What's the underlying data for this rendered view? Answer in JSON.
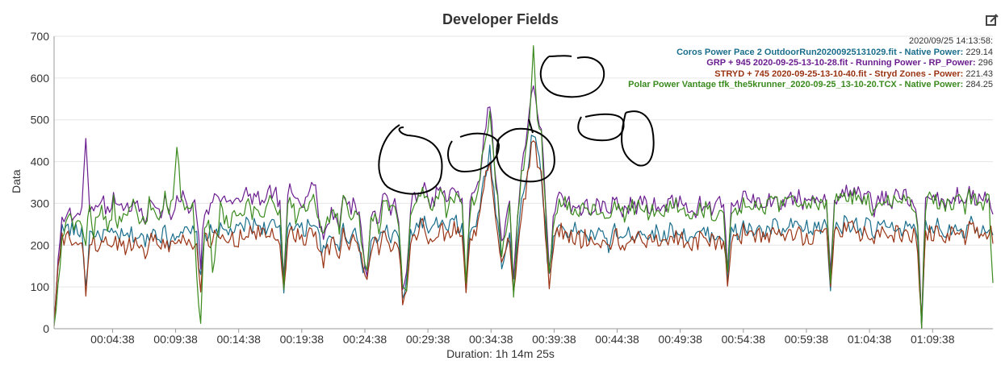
{
  "chart_data": {
    "type": "line",
    "title": "Developer Fields",
    "xlabel": "Duration: 1h 14m 25s",
    "ylabel": "Data",
    "ylim": [
      0,
      700
    ],
    "yticks": [
      0,
      100,
      200,
      300,
      400,
      500,
      600,
      700
    ],
    "duration_seconds": 4465,
    "xtick_seconds": [
      278,
      578,
      878,
      1178,
      1478,
      1778,
      2078,
      2378,
      2678,
      2978,
      3278,
      3578,
      3878,
      4178
    ],
    "xtick_labels": [
      "00:04:38",
      "00:09:38",
      "00:14:38",
      "00:19:38",
      "00:24:38",
      "00:29:38",
      "00:34:38",
      "00:39:38",
      "00:44:38",
      "00:49:38",
      "00:54:38",
      "00:59:38",
      "01:04:38",
      "01:09:38"
    ],
    "hover_timestamp": "2020/09/25 14:13:58:",
    "series": [
      {
        "name": "Coros Power Pace 2 OutdoorRun20200925131029.fit - Native Power",
        "value": "229.14",
        "color": "#1a6e8c",
        "base": [
          5,
          160,
          235,
          240,
          240,
          235,
          230,
          235,
          100,
          225,
          235,
          215,
          225,
          230,
          220,
          225,
          225,
          220,
          215,
          225,
          225,
          220,
          220,
          200,
          230,
          235,
          230,
          225,
          230,
          210,
          225,
          230,
          240,
          230,
          225,
          230,
          220,
          110,
          230,
          225,
          235,
          240,
          235,
          230,
          230,
          240,
          230,
          240,
          245,
          255,
          245,
          250,
          250,
          240,
          245,
          250,
          240,
          230,
          90,
          250,
          255,
          245,
          240,
          230,
          250,
          260,
          250,
          210,
          180,
          200,
          220,
          215,
          200,
          240,
          225,
          215,
          240,
          210,
          150,
          120,
          210,
          220,
          200,
          240,
          235,
          215,
          230,
          210,
          80,
          100,
          230,
          240,
          250,
          260,
          245,
          230,
          240,
          255,
          250,
          230,
          245,
          260,
          245,
          240,
          90,
          230,
          250,
          260,
          320,
          380,
          420,
          330,
          250,
          160,
          190,
          240,
          90,
          210,
          300,
          350,
          420,
          480,
          420,
          380,
          240,
          120,
          210,
          240,
          250,
          240,
          230,
          230,
          240,
          225,
          240,
          215,
          225,
          230,
          220,
          220,
          200,
          230,
          235,
          220,
          215,
          225,
          230,
          225,
          240,
          230,
          225,
          225,
          230,
          230,
          220,
          230,
          240,
          235,
          230,
          225,
          220,
          220,
          215,
          230,
          225,
          230,
          225,
          220,
          230,
          220,
          120,
          230,
          235,
          220,
          250,
          240,
          230,
          235,
          240,
          230,
          230,
          240,
          250,
          235,
          230,
          240,
          245,
          240,
          250,
          230,
          240,
          230,
          245,
          240,
          250,
          240,
          100,
          240,
          250,
          245,
          260,
          250,
          260,
          250,
          235,
          250,
          240,
          220,
          250,
          240,
          250,
          230,
          240,
          250,
          240,
          245,
          235,
          240,
          200,
          10,
          240,
          250,
          240,
          245,
          240,
          230,
          240,
          245,
          250,
          240,
          230,
          260,
          250,
          240,
          240,
          245,
          250,
          230
        ]
      },
      {
        "name": "GRP + 945 2020-09-25-13-10-28.fit - Running Power - RP_Power",
        "value": "296",
        "color": "#6b1e8f",
        "base": [
          10,
          180,
          260,
          270,
          275,
          270,
          280,
          285,
          440,
          300,
          280,
          290,
          320,
          290,
          270,
          330,
          300,
          300,
          280,
          290,
          310,
          290,
          280,
          260,
          300,
          310,
          300,
          280,
          310,
          270,
          290,
          300,
          320,
          310,
          290,
          300,
          280,
          150,
          290,
          285,
          310,
          320,
          300,
          300,
          290,
          310,
          300,
          320,
          310,
          330,
          300,
          320,
          310,
          300,
          320,
          330,
          320,
          300,
          110,
          330,
          340,
          320,
          310,
          300,
          330,
          350,
          330,
          260,
          220,
          250,
          280,
          270,
          240,
          310,
          290,
          280,
          310,
          270,
          180,
          140,
          270,
          280,
          250,
          310,
          300,
          280,
          300,
          270,
          100,
          120,
          300,
          310,
          330,
          350,
          320,
          300,
          310,
          340,
          330,
          300,
          320,
          340,
          320,
          310,
          110,
          300,
          330,
          340,
          410,
          480,
          540,
          420,
          330,
          200,
          240,
          310,
          100,
          270,
          380,
          450,
          530,
          600,
          520,
          480,
          300,
          150,
          260,
          300,
          320,
          310,
          300,
          290,
          300,
          290,
          300,
          280,
          290,
          300,
          290,
          285,
          260,
          300,
          310,
          290,
          280,
          290,
          300,
          290,
          310,
          300,
          290,
          290,
          300,
          300,
          285,
          300,
          310,
          305,
          300,
          290,
          285,
          285,
          280,
          300,
          290,
          300,
          290,
          285,
          300,
          290,
          150,
          300,
          305,
          290,
          320,
          310,
          300,
          305,
          310,
          300,
          300,
          310,
          320,
          305,
          300,
          310,
          315,
          310,
          320,
          300,
          310,
          300,
          315,
          310,
          320,
          310,
          130,
          310,
          320,
          315,
          330,
          320,
          330,
          320,
          305,
          320,
          310,
          280,
          320,
          310,
          320,
          300,
          310,
          320,
          310,
          315,
          305,
          310,
          260,
          10,
          310,
          320,
          310,
          315,
          310,
          300,
          310,
          315,
          320,
          310,
          300,
          330,
          320,
          310,
          310,
          315,
          320,
          290
        ]
      },
      {
        "name": "STRYD + 745 2020-09-25-13-10-40.fit - Stryd Zones - Power",
        "value": "221.43",
        "color": "#9a3414",
        "base": [
          5,
          150,
          210,
          215,
          215,
          210,
          205,
          210,
          90,
          200,
          210,
          195,
          205,
          210,
          200,
          205,
          205,
          200,
          195,
          205,
          205,
          200,
          200,
          185,
          210,
          215,
          210,
          205,
          210,
          190,
          205,
          210,
          220,
          210,
          205,
          210,
          200,
          100,
          210,
          205,
          215,
          220,
          215,
          210,
          210,
          220,
          210,
          220,
          225,
          235,
          225,
          230,
          230,
          220,
          225,
          230,
          220,
          210,
          85,
          230,
          235,
          225,
          220,
          210,
          230,
          240,
          230,
          195,
          165,
          185,
          205,
          200,
          185,
          225,
          210,
          200,
          225,
          195,
          140,
          115,
          195,
          205,
          185,
          225,
          220,
          200,
          215,
          195,
          75,
          95,
          215,
          225,
          235,
          245,
          230,
          215,
          225,
          240,
          235,
          215,
          230,
          245,
          230,
          225,
          85,
          215,
          235,
          245,
          300,
          360,
          400,
          315,
          235,
          150,
          180,
          225,
          85,
          195,
          285,
          330,
          400,
          460,
          400,
          360,
          225,
          115,
          195,
          225,
          235,
          225,
          215,
          215,
          225,
          210,
          225,
          200,
          210,
          215,
          205,
          205,
          185,
          215,
          220,
          205,
          200,
          210,
          215,
          210,
          225,
          215,
          210,
          210,
          215,
          215,
          205,
          215,
          225,
          220,
          215,
          210,
          205,
          205,
          200,
          215,
          210,
          215,
          210,
          205,
          215,
          205,
          110,
          215,
          220,
          205,
          235,
          225,
          215,
          220,
          225,
          215,
          215,
          225,
          235,
          220,
          215,
          225,
          230,
          225,
          235,
          215,
          225,
          215,
          230,
          225,
          235,
          225,
          90,
          225,
          235,
          230,
          245,
          235,
          245,
          235,
          220,
          235,
          225,
          205,
          235,
          225,
          235,
          215,
          225,
          235,
          225,
          230,
          220,
          225,
          185,
          10,
          225,
          235,
          225,
          230,
          225,
          215,
          225,
          230,
          235,
          225,
          215,
          245,
          235,
          225,
          225,
          230,
          235,
          220
        ]
      },
      {
        "name": "Polar Power Vantage tfk_the5krunner_2020-09-25_13-10-20.TCX - Native Power",
        "value": "284.25",
        "color": "#3a8a1e",
        "base": [
          10,
          100,
          230,
          250,
          260,
          250,
          255,
          260,
          200,
          300,
          230,
          270,
          290,
          250,
          240,
          310,
          250,
          260,
          270,
          290,
          300,
          280,
          260,
          240,
          300,
          290,
          260,
          270,
          310,
          280,
          300,
          420,
          330,
          300,
          280,
          290,
          120,
          0,
          240,
          260,
          150,
          200,
          300,
          260,
          250,
          270,
          290,
          280,
          270,
          300,
          260,
          290,
          280,
          270,
          300,
          310,
          290,
          280,
          110,
          290,
          300,
          270,
          300,
          290,
          300,
          320,
          300,
          260,
          220,
          250,
          270,
          280,
          240,
          320,
          290,
          270,
          300,
          260,
          170,
          130,
          260,
          280,
          240,
          300,
          300,
          280,
          300,
          260,
          90,
          110,
          290,
          300,
          320,
          330,
          300,
          290,
          300,
          330,
          310,
          280,
          300,
          320,
          310,
          290,
          100,
          290,
          310,
          320,
          400,
          460,
          520,
          400,
          310,
          180,
          220,
          290,
          90,
          250,
          360,
          430,
          500,
          660,
          500,
          460,
          290,
          130,
          240,
          290,
          310,
          300,
          290,
          280,
          290,
          280,
          290,
          270,
          280,
          290,
          280,
          275,
          250,
          290,
          300,
          280,
          270,
          280,
          290,
          280,
          300,
          290,
          280,
          280,
          290,
          290,
          275,
          290,
          300,
          295,
          290,
          280,
          275,
          275,
          270,
          290,
          280,
          290,
          280,
          275,
          290,
          280,
          140,
          290,
          295,
          280,
          310,
          300,
          290,
          295,
          300,
          290,
          290,
          300,
          310,
          295,
          290,
          300,
          305,
          300,
          310,
          290,
          300,
          290,
          305,
          300,
          310,
          300,
          120,
          300,
          310,
          305,
          320,
          310,
          320,
          310,
          295,
          310,
          300,
          270,
          310,
          300,
          310,
          290,
          300,
          310,
          300,
          305,
          295,
          300,
          250,
          10,
          300,
          310,
          300,
          305,
          300,
          290,
          300,
          305,
          310,
          300,
          290,
          320,
          310,
          300,
          300,
          305,
          310,
          110
        ]
      }
    ]
  },
  "legend": {
    "timestamp": "2020/09/25 14:13:58:",
    "items": [
      {
        "label": "Coros Power Pace 2 OutdoorRun20200925131029.fit - Native Power:",
        "value": "229.14",
        "color": "#1a6e8c"
      },
      {
        "label": "GRP + 945 2020-09-25-13-10-28.fit - Running Power - RP_Power:",
        "value": "296",
        "color": "#6b1e8f"
      },
      {
        "label": "STRYD + 745 2020-09-25-13-10-40.fit - Stryd Zones - Power:",
        "value": "221.43",
        "color": "#9a3414"
      },
      {
        "label": "Polar Power Vantage tfk_the5krunner_2020-09-25_13-10-20.TCX - Native Power:",
        "value": "284.25",
        "color": "#3a8a1e"
      }
    ]
  },
  "icons": {
    "edit": "edit-icon"
  }
}
